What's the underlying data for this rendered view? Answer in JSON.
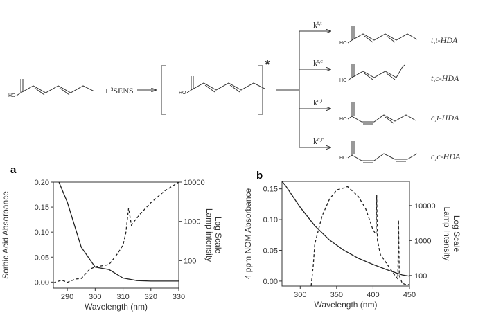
{
  "scheme": {
    "hydroxyl": "HO",
    "sensitizer": "+ ³SENS",
    "excited": "*",
    "rate_constants": [
      {
        "base": "k",
        "sup": "t,t"
      },
      {
        "base": "k",
        "sup": "t,c"
      },
      {
        "base": "k",
        "sup": "c,t"
      },
      {
        "base": "k",
        "sup": "c,c"
      }
    ],
    "products": [
      "t,t-HDA",
      "t,c-HDA",
      "c,t-HDA",
      "c,c-HDA"
    ]
  },
  "chart_data": [
    {
      "type": "line",
      "panel": "a",
      "xlabel": "Wavelength (nm)",
      "ylabel": "Sorbic Acid Absorbance",
      "y2label": [
        "Lamp intensity",
        "Log Scale"
      ],
      "xlim": [
        285,
        330
      ],
      "xticks": [
        290,
        300,
        310,
        320,
        330
      ],
      "ylim": [
        -0.012,
        0.2
      ],
      "yticks": [
        {
          "value": 0,
          "label": "0.00"
        },
        {
          "value": 0.05,
          "label": "0.05"
        },
        {
          "value": 0.1,
          "label": "0.10"
        },
        {
          "value": 0.15,
          "label": "0.15"
        },
        {
          "value": 0.2,
          "label": "0.20"
        }
      ],
      "y2lim": [
        20,
        10000
      ],
      "y2ticks": [
        100,
        1000,
        10000
      ],
      "y2log": true,
      "series": [
        {
          "color": "#222222",
          "line_style": "solid",
          "x": [
            287,
            290,
            295,
            300,
            305,
            310,
            315,
            320,
            330
          ],
          "values": [
            0.2,
            0.16,
            0.07,
            0.03,
            0.025,
            0.008,
            0.003,
            0.002,
            0.002
          ]
        },
        {
          "axis": "y2",
          "color": "#222222",
          "line_style": "dashed",
          "x": [
            285,
            288,
            290,
            293,
            295,
            298,
            300,
            303,
            305,
            308,
            310,
            311,
            312,
            313,
            314,
            316,
            320,
            325,
            330
          ],
          "values": [
            27,
            32,
            28,
            34,
            35,
            60,
            70,
            75,
            80,
            150,
            250,
            500,
            2200,
            800,
            1000,
            1500,
            3000,
            6000,
            10000
          ]
        }
      ]
    },
    {
      "type": "line",
      "panel": "b",
      "xlabel": "Wavelength (nm)",
      "ylabel": "4 ppm NOM Absorbance",
      "y2label": [
        "Lamp Intensity",
        "Log Scale"
      ],
      "xlim": [
        275,
        450
      ],
      "xticks": [
        300,
        350,
        400,
        450
      ],
      "ylim": [
        -0.008,
        0.162
      ],
      "yticks": [
        {
          "value": 0,
          "label": "0.00"
        },
        {
          "value": 0.05,
          "label": "0.05"
        },
        {
          "value": 0.1,
          "label": "0.10"
        },
        {
          "value": 0.15,
          "label": "0.15"
        }
      ],
      "y2lim": [
        50,
        49000
      ],
      "y2ticks": [
        100,
        1000,
        10000
      ],
      "y2log": true,
      "series": [
        {
          "color": "#222222",
          "line_style": "solid",
          "x": [
            275,
            280,
            300,
            320,
            340,
            360,
            380,
            400,
            420,
            440,
            450
          ],
          "values": [
            0.162,
            0.155,
            0.12,
            0.09,
            0.067,
            0.05,
            0.037,
            0.027,
            0.018,
            0.01,
            0.008
          ]
        },
        {
          "axis": "y2",
          "color": "#222222",
          "line_style": "dashed",
          "x": [
            315,
            318,
            320,
            330,
            340,
            350,
            360,
            365,
            370,
            380,
            390,
            400,
            404,
            405,
            406,
            410,
            420,
            430,
            434,
            435,
            436,
            440,
            445,
            450
          ],
          "values": [
            50,
            200,
            800,
            5000,
            15000,
            28000,
            32000,
            35000,
            28000,
            18000,
            8000,
            2000,
            1500,
            20000,
            1000,
            400,
            200,
            100,
            80,
            3800,
            100,
            60,
            55,
            55
          ]
        }
      ]
    }
  ]
}
